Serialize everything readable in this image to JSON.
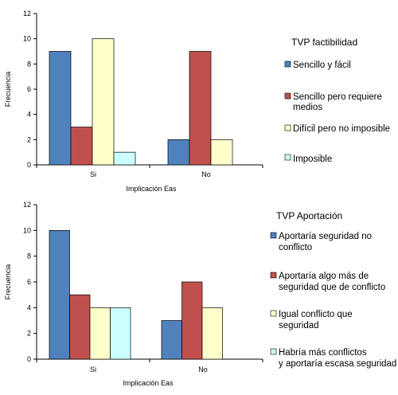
{
  "chart_data": [
    {
      "type": "bar",
      "categories": [
        "Si",
        "No"
      ],
      "series": [
        {
          "name": "Sencillo y fácil",
          "color": "#4f81bd",
          "values": [
            9,
            2
          ]
        },
        {
          "name": "Sencillo pero requiere medios",
          "color": "#c0504d",
          "values": [
            3,
            9
          ]
        },
        {
          "name": "Difícil pero no imposible",
          "color": "#ffffcc",
          "values": [
            10,
            2
          ]
        },
        {
          "name": "Imposible",
          "color": "#ccffff",
          "values": [
            1,
            0
          ]
        }
      ],
      "title": "",
      "legend_title": "TVP factibilidad",
      "xlabel": "Implicación Eas",
      "ylabel": "Frecuencia",
      "ylim": [
        0,
        12
      ],
      "yticks": [
        "0",
        "2",
        "4",
        "6",
        "8",
        "10",
        "12"
      ],
      "grid": false,
      "legend": "right"
    },
    {
      "type": "bar",
      "categories": [
        "Si",
        "No"
      ],
      "series": [
        {
          "name": "Aportaría seguridad no conflicto",
          "color": "#4f81bd",
          "values": [
            10,
            3
          ]
        },
        {
          "name": "Aportaría algo más de seguridad que de conflicto",
          "color": "#c0504d",
          "values": [
            5,
            6
          ]
        },
        {
          "name": "Igual conflicto que seguridad",
          "color": "#ffffcc",
          "values": [
            4,
            4
          ]
        },
        {
          "name": "Habría más conflictos y aportaría escasa seguridad",
          "color": "#ccffff",
          "values": [
            4,
            0
          ]
        }
      ],
      "title": "",
      "legend_title": "TVP  Aportación",
      "xlabel": "Implicación Eas",
      "ylabel": "Frecuencia",
      "ylim": [
        0,
        12
      ],
      "yticks": [
        "0",
        "2",
        "4",
        "6",
        "8",
        "10",
        "12"
      ],
      "grid": false,
      "legend": "right"
    }
  ]
}
